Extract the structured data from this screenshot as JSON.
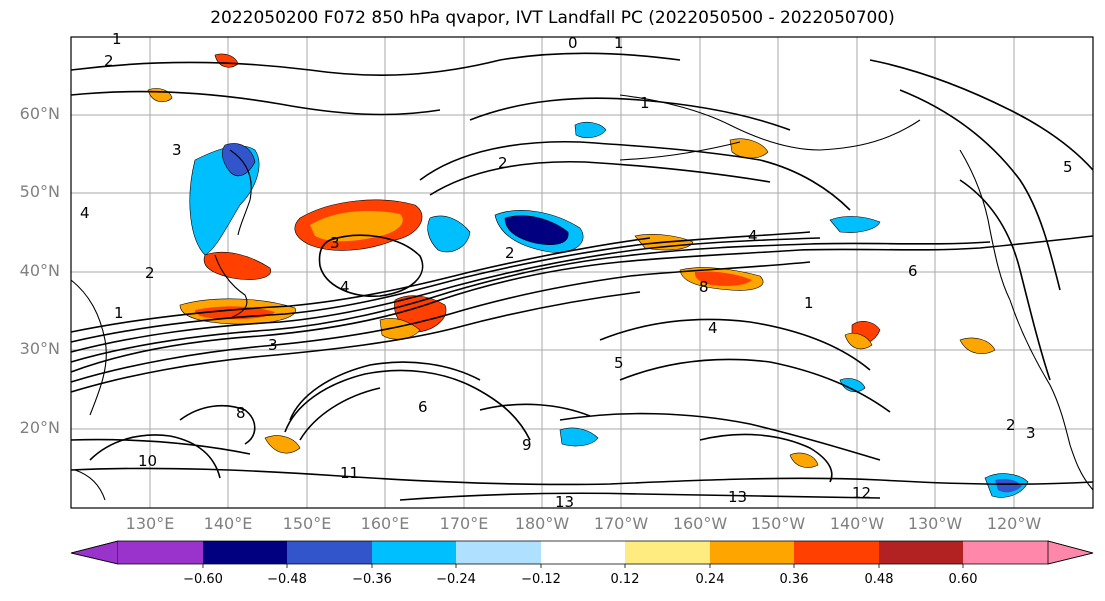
{
  "title": "2022050200 F072 850 hPa qvapor, IVT Landfall PC (2022050500 - 2022050700)",
  "map": {
    "lat_labels": [
      "60°N",
      "50°N",
      "40°N",
      "30°N",
      "20°N"
    ],
    "lon_labels": [
      "130°E",
      "140°E",
      "150°E",
      "160°E",
      "170°E",
      "180°W",
      "170°W",
      "160°W",
      "150°W",
      "140°W",
      "130°W",
      "120°W"
    ],
    "contour_labels": [
      "1",
      "2",
      "0",
      "1",
      "3",
      "2",
      "1",
      "5",
      "4",
      "2",
      "4",
      "3",
      "2",
      "4",
      "6",
      "8",
      "4",
      "1",
      "3",
      "5",
      "6",
      "9",
      "11",
      "10",
      "13",
      "13",
      "12",
      "2",
      "3",
      "8",
      "1"
    ]
  },
  "colorbar": {
    "colors": [
      "#9933cc",
      "#000080",
      "#3355cc",
      "#00bfff",
      "#b0e0ff",
      "#ffffff",
      "#ffec80",
      "#ffa500",
      "#ff4000",
      "#b22222",
      "#ff88aa"
    ],
    "ticks": [
      "−0.60",
      "−0.48",
      "−0.36",
      "−0.24",
      "−0.12",
      "0.12",
      "0.24",
      "0.36",
      "0.48",
      "0.60"
    ]
  }
}
